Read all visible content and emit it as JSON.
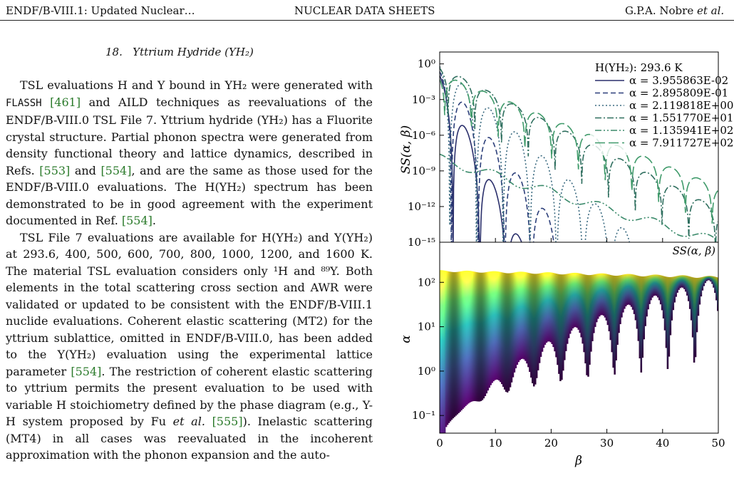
{
  "header": {
    "left": "ENDF/B-VIII.1: Updated Nuclear…",
    "center": "NUCLEAR DATA SHEETS",
    "right_authors": "G.P.A. Nobre",
    "right_etal": "et al."
  },
  "section": {
    "number": "18.",
    "title": "Yttrium Hydride (YH₂)"
  },
  "text": {
    "p1a": "TSL evaluations H and Y bound in YH₂ were generated with ",
    "flassh": "FLASSH",
    "ref461": "[461]",
    "p1b": " and AILD techniques as reevaluations of the ENDF/B-VIII.0 TSL File 7. Yttrium hydride (YH₂) has a Fluorite crystal structure. Partial phonon spectra were generated from density functional theory and lattice dynamics, described in Refs. ",
    "ref553": "[553]",
    "p1c": " and ",
    "ref554a": "[554]",
    "p1d": ", and are the same as those used for the ENDF/B-VIII.0 evaluations. The H(YH₂) spectrum has been demonstrated to be in good agreement with the experiment documented in Ref. ",
    "ref554b": "[554]",
    "p1e": ".",
    "p2a": "TSL File 7 evaluations are available for H(YH₂) and Y(YH₂) at 293.6, 400, 500, 600, 700, 800, 1000, 1200, and 1600 K. The material TSL evaluation considers only ¹H and ⁸⁹Y. Both elements in the total scattering cross section and AWR were validated or updated to be consistent with the ENDF/B-VIII.1 nuclide evaluations. Coherent elastic scattering (MT2) for the yttrium sublattice, omitted in ENDF/B-VIII.0, has been added to the Y(YH₂) evaluation using the experimental lattice parameter ",
    "ref554c": "[554]",
    "p2b": ". The restriction of coherent elastic scattering to yttrium permits the present evaluation to be used with variable H stoichiometry defined by the phase diagram (e.g., Y-H system proposed by Fu ",
    "etal": "et al.",
    "ref555": "[555]",
    "p2c": "). Inelastic scattering (MT4) in all cases was reevaluated in the incoherent approximation with the phonon expansion and the auto-"
  },
  "chart_data": [
    {
      "type": "line",
      "title": "H(YH₂):  293.6 K",
      "ylabel": "SS(α, β)",
      "xlim": [
        0,
        50
      ],
      "ylim": [
        1e-15,
        10
      ],
      "yscale": "log",
      "yticklabels": [
        "10⁰",
        "10⁻³",
        "10⁻⁶",
        "10⁻⁹",
        "10⁻¹²",
        "10⁻¹⁵"
      ],
      "legend_position": "top-right",
      "series": [
        {
          "name": "α = 3.955863E-02",
          "color": "#2a2f6b",
          "dash": "solid"
        },
        {
          "name": "α = 2.895809E-01",
          "color": "#2c3f7a",
          "dash": "dashed"
        },
        {
          "name": "α = 2.119818E+00",
          "color": "#3a6a80",
          "dash": "dotted"
        },
        {
          "name": "α = 1.551770E+01",
          "color": "#2e6e5e",
          "dash": "dashdot"
        },
        {
          "name": "α = 1.135941E+02",
          "color": "#3a8a6a",
          "dash": "dashdotdot"
        },
        {
          "name": "α = 7.911727E+02",
          "color": "#3f9a6a",
          "dash": "longdash"
        }
      ]
    },
    {
      "type": "heatmap",
      "label": "SS(α, β)",
      "xlabel": "β",
      "ylabel": "α",
      "xlim": [
        0,
        50
      ],
      "xticks": [
        0,
        10,
        20,
        30,
        40,
        50
      ],
      "yscale": "log",
      "ylim": [
        0.04,
        800
      ],
      "yticklabels": [
        "10⁻¹",
        "10⁰",
        "10¹",
        "10²"
      ],
      "colormap": "viridis",
      "peak_beta": [
        4.8,
        9.6,
        14.4,
        19.2,
        24,
        28.8,
        33.6,
        38.4,
        43.2,
        48
      ]
    }
  ]
}
